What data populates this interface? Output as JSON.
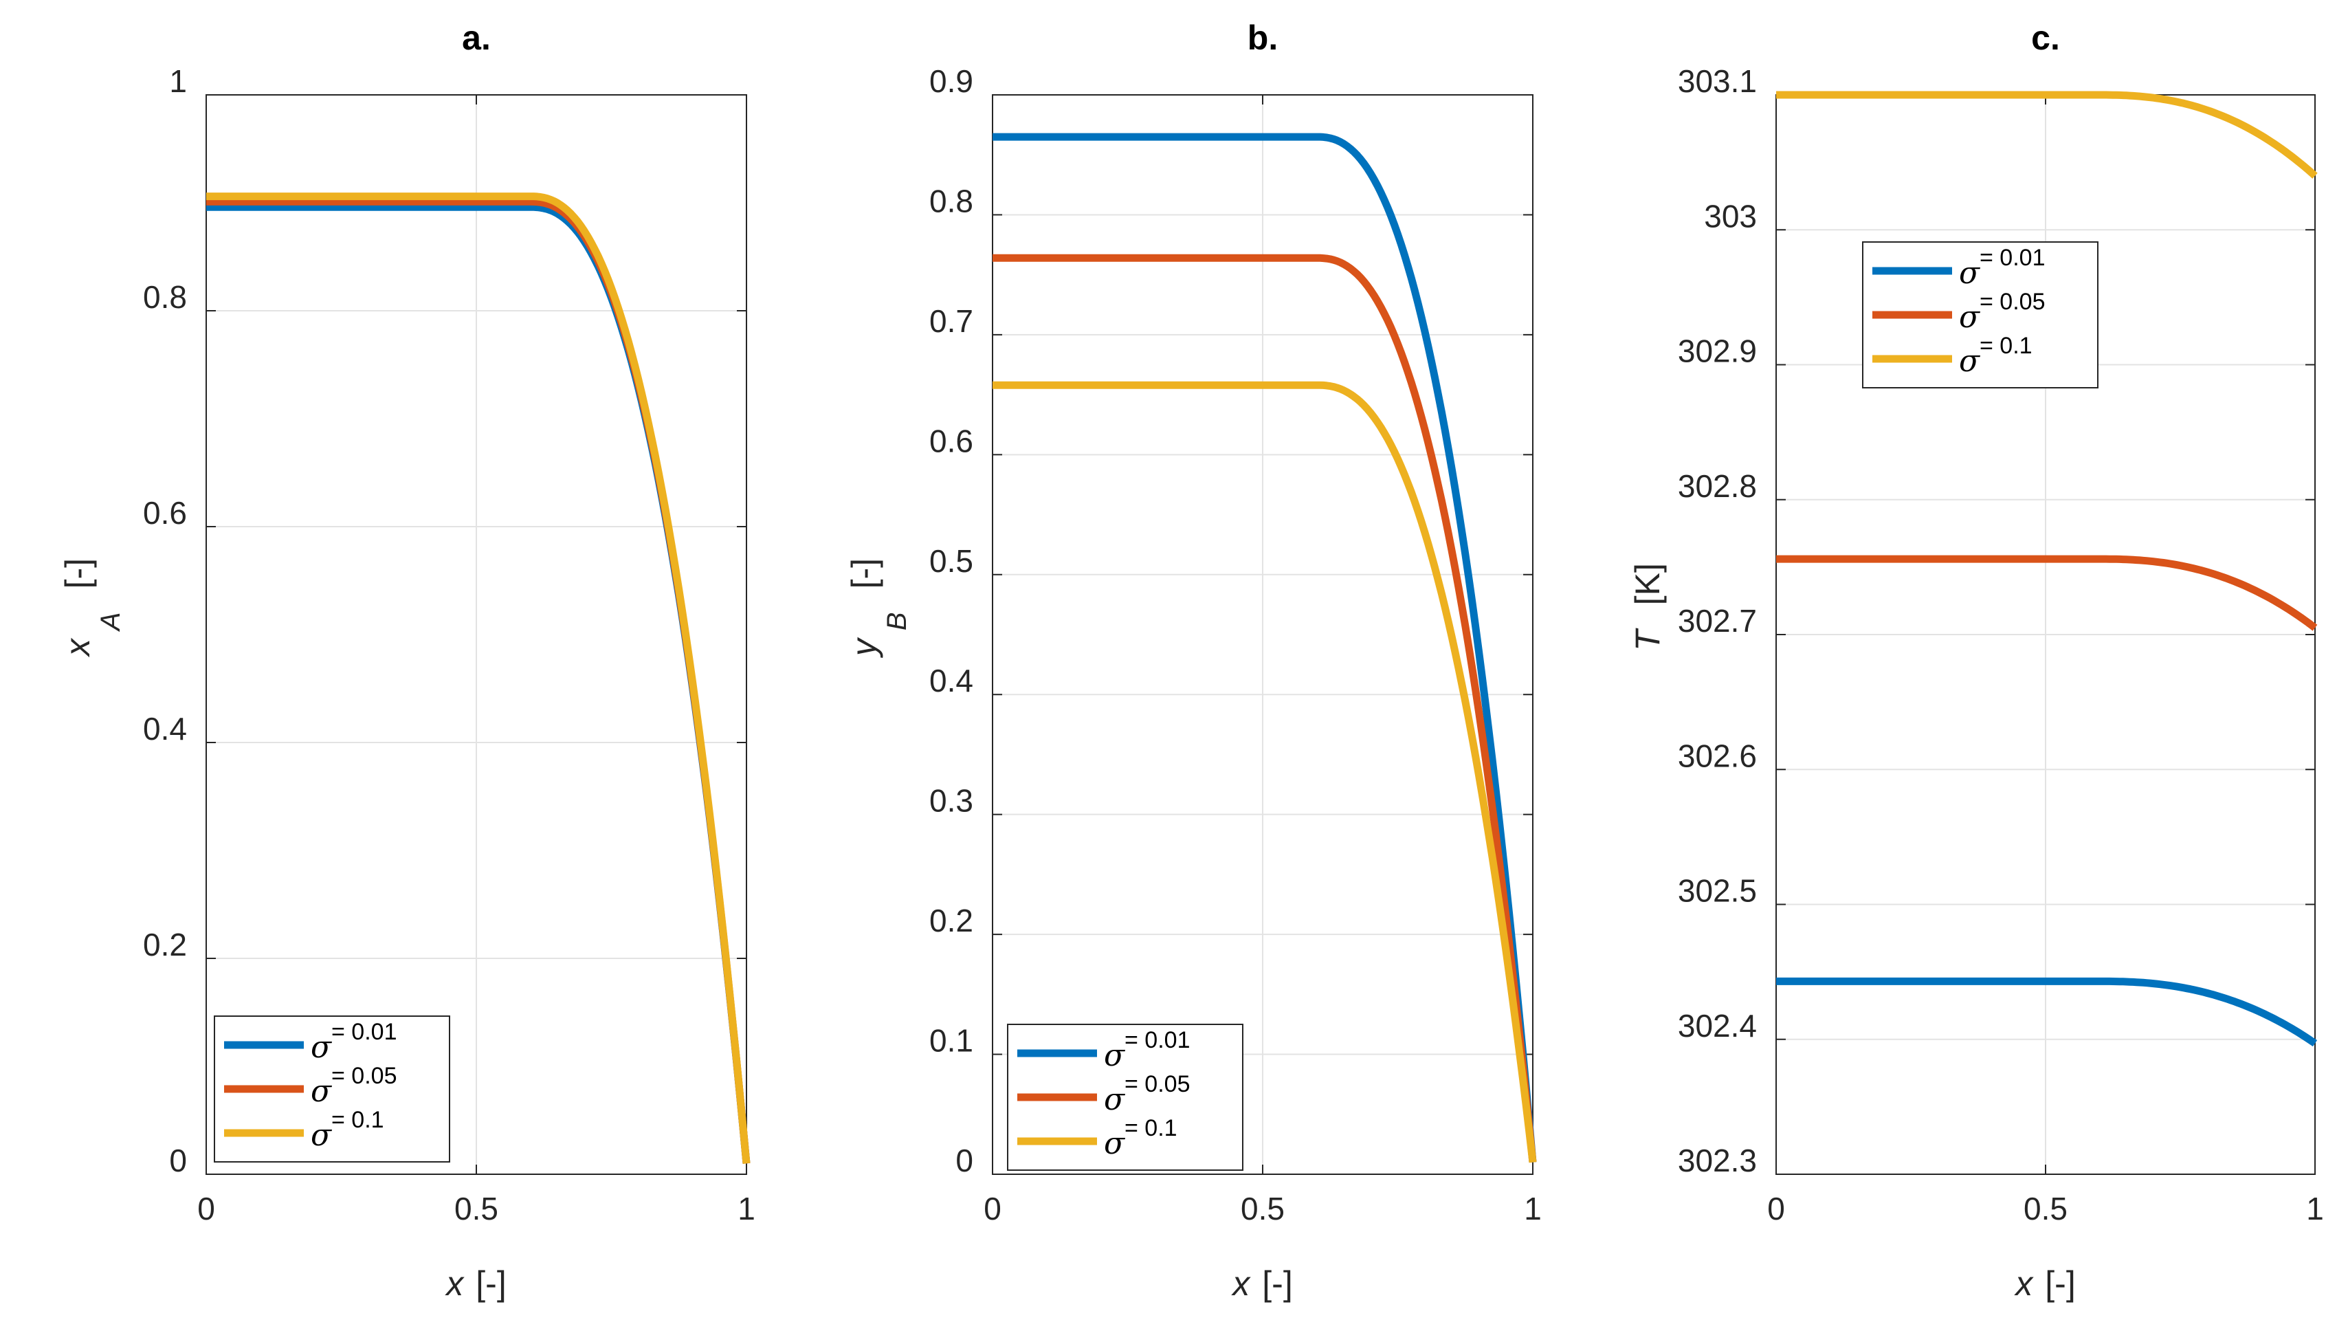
{
  "colors": {
    "blue": "#0072BD",
    "orange": "#D95319",
    "yellow": "#EDB120"
  },
  "chart_data": [
    {
      "type": "line",
      "title": "a.",
      "xlabel": {
        "symbol": "x",
        "unit": "[-]"
      },
      "ylabel": {
        "symbol": "x",
        "subscript": "A",
        "unit": "[-]"
      },
      "xlim": [
        0,
        1
      ],
      "ylim": [
        0,
        1
      ],
      "xticks": [
        0,
        0.5,
        1
      ],
      "xtick_labels": [
        "0",
        "0.5",
        "1"
      ],
      "yticks": [
        0,
        0.2,
        0.4,
        0.6,
        0.8,
        1
      ],
      "ytick_labels": [
        "0",
        "0.2",
        "0.4",
        "0.6",
        "0.8",
        "1"
      ],
      "legend": "bottom-left",
      "series": [
        {
          "name": "σ = 0.01",
          "symbol": "σ",
          "value_label": "= 0.01",
          "color": "#0072BD",
          "plateau": 0.896,
          "end": 0.01,
          "knee": 0.6
        },
        {
          "name": "σ = 0.05",
          "symbol": "σ",
          "value_label": "= 0.05",
          "color": "#D95319",
          "plateau": 0.901,
          "end": 0.01,
          "knee": 0.6
        },
        {
          "name": "σ = 0.1",
          "symbol": "σ",
          "value_label": "= 0.1",
          "color": "#EDB120",
          "plateau": 0.906,
          "end": 0.01,
          "knee": 0.6
        }
      ]
    },
    {
      "type": "line",
      "title": "b.",
      "xlabel": {
        "symbol": "x",
        "unit": "[-]"
      },
      "ylabel": {
        "symbol": "y",
        "subscript": "B",
        "unit": "[-]"
      },
      "xlim": [
        0,
        1
      ],
      "ylim": [
        0,
        0.9
      ],
      "xticks": [
        0,
        0.5,
        1
      ],
      "xtick_labels": [
        "0",
        "0.5",
        "1"
      ],
      "yticks": [
        0,
        0.1,
        0.2,
        0.3,
        0.4,
        0.5,
        0.6,
        0.7,
        0.8,
        0.9
      ],
      "ytick_labels": [
        "0",
        "0.1",
        "0.2",
        "0.3",
        "0.4",
        "0.5",
        "0.6",
        "0.7",
        "0.8",
        "0.9"
      ],
      "legend": "bottom-left",
      "series": [
        {
          "name": "σ = 0.01",
          "symbol": "σ",
          "value_label": "= 0.01",
          "color": "#0072BD",
          "plateau": 0.865,
          "end": 0.01,
          "knee": 0.6
        },
        {
          "name": "σ = 0.05",
          "symbol": "σ",
          "value_label": "= 0.05",
          "color": "#D95319",
          "plateau": 0.764,
          "end": 0.01,
          "knee": 0.6
        },
        {
          "name": "σ = 0.1",
          "symbol": "σ",
          "value_label": "= 0.1",
          "color": "#EDB120",
          "plateau": 0.658,
          "end": 0.01,
          "knee": 0.6
        }
      ]
    },
    {
      "type": "line",
      "title": "c.",
      "xlabel": {
        "symbol": "x",
        "unit": "[-]"
      },
      "ylabel": {
        "symbol": "T",
        "subscript": "",
        "unit": "[K]"
      },
      "xlim": [
        0,
        1
      ],
      "ylim": [
        302.3,
        303.1
      ],
      "xticks": [
        0,
        0.5,
        1
      ],
      "xtick_labels": [
        "0",
        "0.5",
        "1"
      ],
      "yticks": [
        302.3,
        302.4,
        302.5,
        302.6,
        302.7,
        302.8,
        302.9,
        303,
        303.1
      ],
      "ytick_labels": [
        "302.3",
        "302.4",
        "302.5",
        "302.6",
        "302.7",
        "302.8",
        "302.9",
        "303",
        "303.1"
      ],
      "legend": "top-center",
      "series": [
        {
          "name": "σ = 0.01",
          "symbol": "σ",
          "value_label": "= 0.01",
          "color": "#0072BD",
          "plateau": 302.443,
          "end": 302.397,
          "knee": 0.6
        },
        {
          "name": "σ = 0.05",
          "symbol": "σ",
          "value_label": "= 0.05",
          "color": "#D95319",
          "plateau": 302.756,
          "end": 302.705,
          "knee": 0.6
        },
        {
          "name": "σ = 0.1",
          "symbol": "σ",
          "value_label": "= 0.1",
          "color": "#EDB120",
          "plateau": 303.1,
          "end": 303.04,
          "knee": 0.6
        }
      ]
    }
  ]
}
